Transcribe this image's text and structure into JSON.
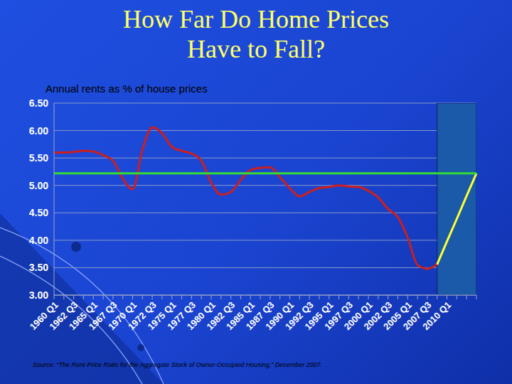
{
  "chart_data": {
    "type": "line",
    "title": "How Far Do Home Prices Have to Fall?",
    "subtitle": "Annual rents as % of house prices",
    "source": "Source: “The Rent-Price Ratio for the Aggregate Stock of Owner-Occupied Housing,” December 2007.",
    "categories": [
      "1960 Q1",
      null,
      "1962 Q3",
      null,
      "1965 Q1",
      null,
      "1967 Q3",
      null,
      "1970 Q1",
      null,
      "1972 Q3",
      null,
      "1975 Q1",
      null,
      "1977 Q3",
      null,
      "1980 Q1",
      null,
      "1982 Q3",
      null,
      "1985 Q1",
      null,
      "1987 Q3",
      null,
      "1990 Q1",
      null,
      "1992 Q3",
      null,
      "1995 Q1",
      null,
      "1997 Q3",
      null,
      "2000 Q1",
      null,
      "2002 Q3",
      null,
      "2005 Q1",
      null,
      "2007 Q3",
      null,
      "2010 Q1",
      null,
      null,
      null
    ],
    "series": [
      {
        "color": "#cc1f1f",
        "values": [
          5.6,
          5.6,
          5.61,
          5.63,
          5.62,
          5.55,
          5.45,
          5.12,
          4.93,
          5.65,
          6.06,
          5.95,
          5.7,
          5.63,
          5.58,
          5.45,
          5.05,
          4.83,
          4.88,
          5.1,
          5.28,
          5.32,
          5.33,
          5.15,
          4.95,
          4.8,
          4.88,
          4.95,
          4.97,
          5.0,
          4.98,
          4.97,
          4.9,
          4.78,
          4.57,
          4.42,
          4.05,
          3.55,
          3.48,
          3.56,
          null,
          null,
          null,
          null
        ]
      },
      {
        "color": "#ffff33",
        "values": [
          null,
          null,
          null,
          null,
          null,
          null,
          null,
          null,
          null,
          null,
          null,
          null,
          null,
          null,
          null,
          null,
          null,
          null,
          null,
          null,
          null,
          null,
          null,
          null,
          null,
          null,
          null,
          null,
          null,
          null,
          null,
          null,
          null,
          null,
          null,
          null,
          null,
          null,
          null,
          3.56,
          3.98,
          4.39,
          4.81,
          5.22
        ]
      },
      {
        "color": "#33dd33",
        "values": [
          5.22,
          5.22,
          5.22,
          5.22,
          5.22,
          5.22,
          5.22,
          5.22,
          5.22,
          5.22,
          5.22,
          5.22,
          5.22,
          5.22,
          5.22,
          5.22,
          5.22,
          5.22,
          5.22,
          5.22,
          5.22,
          5.22,
          5.22,
          5.22,
          5.22,
          5.22,
          5.22,
          5.22,
          5.22,
          5.22,
          5.22,
          5.22,
          5.22,
          5.22,
          5.22,
          5.22,
          5.22,
          5.22,
          5.22,
          5.22,
          5.22,
          5.22,
          5.22,
          5.22
        ]
      }
    ],
    "ylim": [
      3,
      6.5
    ],
    "yticks": [
      {
        "value": 3,
        "label": "3.00"
      },
      {
        "value": 3.5,
        "label": "3.50"
      },
      {
        "value": 4,
        "label": "4.00"
      },
      {
        "value": 4.5,
        "label": "4.50"
      },
      {
        "value": 5,
        "label": "5.00"
      },
      {
        "value": 5.5,
        "label": "5.50"
      },
      {
        "value": 6,
        "label": "6.00"
      },
      {
        "value": 6.5,
        "label": "6.50"
      }
    ],
    "grid": true
  }
}
